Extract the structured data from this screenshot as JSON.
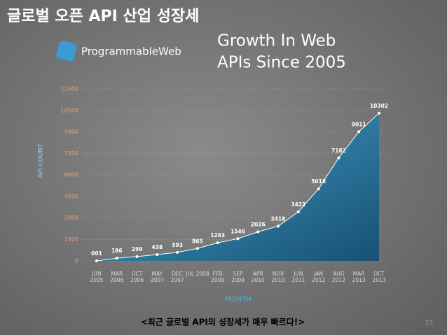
{
  "title": "글로벌 오픈 API 산업 성장세",
  "logo": "ProgrammableWeb",
  "caption": "<최근 글로벌 API의 성장세가 매우 빠르다!>",
  "page_number": "33",
  "chart_data": {
    "type": "area",
    "title_lines": [
      "Growth In Web",
      "APIs Since 2005"
    ],
    "x_label": "MONTH",
    "y_label": "API COUNT",
    "categories": [
      "JUN 2005",
      "MAR 2006",
      "OCT 2006",
      "MAY 2007",
      "DEC 2007",
      "JUL 2008",
      "FEB 2009",
      "SEP 2009",
      "APR 2010",
      "NOV 2010",
      "JUN 2011",
      "JAN 2012",
      "AUG 2012",
      "MAR 2013",
      "OCT 2013"
    ],
    "values": [
      1,
      186,
      299,
      438,
      593,
      865,
      1263,
      1546,
      2026,
      2418,
      3422,
      5018,
      7182,
      9011,
      10302
    ],
    "value_labels": [
      "001",
      "186",
      "299",
      "438",
      "593",
      "865",
      "1263",
      "1546",
      "2026",
      "2418",
      "3422",
      "5018",
      "7182",
      "9011",
      "10302"
    ],
    "color": "#1f7fae",
    "ylim": [
      0,
      12000
    ],
    "yticks": [
      0,
      1500,
      3000,
      4500,
      6000,
      7500,
      9000,
      10500,
      12000
    ],
    "grid": true
  }
}
